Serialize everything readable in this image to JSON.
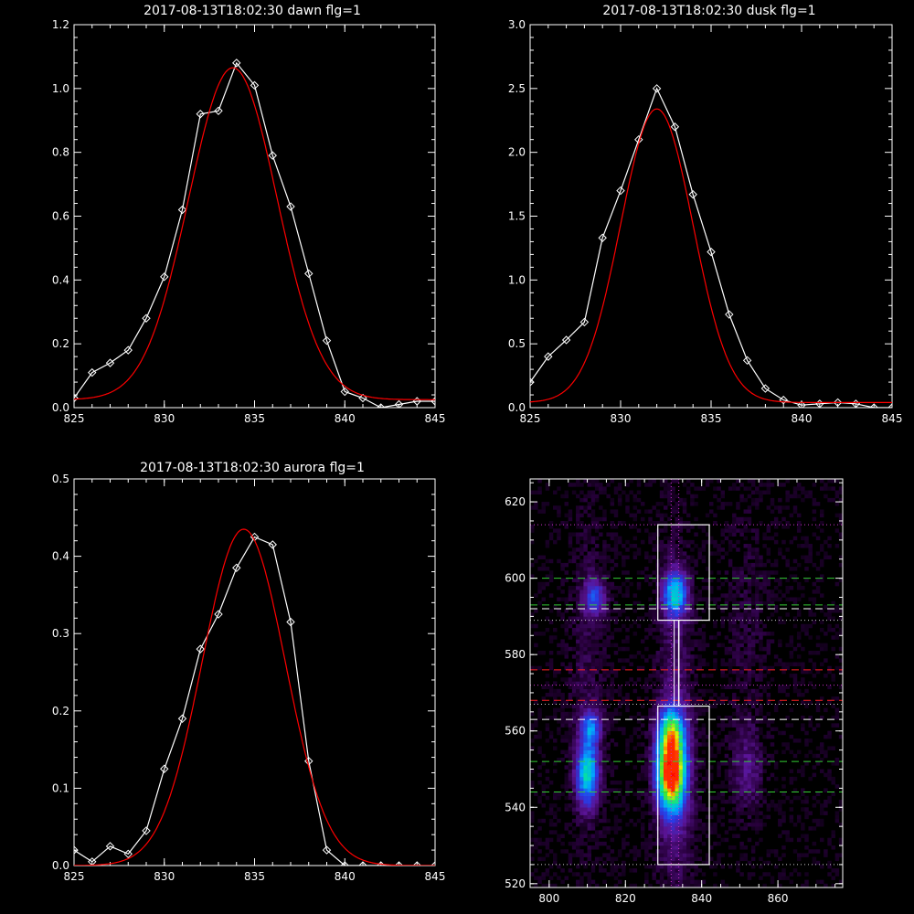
{
  "chart_data": [
    {
      "type": "line",
      "title": "2017-08-13T18:02:30 dawn flg=1",
      "xlim": [
        825,
        845
      ],
      "ylim": [
        0,
        1.2
      ],
      "xticks": [
        825,
        830,
        835,
        840,
        845
      ],
      "yticks": [
        "0.0",
        "0.2",
        "0.4",
        "0.6",
        "0.8",
        "1.0",
        "1.2"
      ],
      "x": [
        825,
        826,
        827,
        828,
        829,
        830,
        831,
        832,
        833,
        834,
        835,
        836,
        837,
        838,
        839,
        840,
        841,
        842,
        843,
        844,
        845
      ],
      "series": [
        {
          "color": "#ffffff",
          "markers": true,
          "values": [
            0.03,
            0.11,
            0.14,
            0.18,
            0.28,
            0.41,
            0.62,
            0.92,
            0.93,
            1.08,
            1.01,
            0.79,
            0.63,
            0.42,
            0.21,
            0.05,
            0.03,
            0.0,
            0.01,
            0.02,
            0.02
          ]
        },
        {
          "color": "#ff0000",
          "markers": false,
          "fit": {
            "amp": 1.04,
            "mu": 833.8,
            "sigma": 2.45,
            "base": 0.025
          }
        }
      ]
    },
    {
      "type": "line",
      "title": "2017-08-13T18:02:30 dusk flg=1",
      "xlim": [
        825,
        845
      ],
      "ylim": [
        0,
        3.0
      ],
      "xticks": [
        825,
        830,
        835,
        840,
        845
      ],
      "yticks": [
        "0.0",
        "0.5",
        "1.0",
        "1.5",
        "2.0",
        "2.5",
        "3.0"
      ],
      "x": [
        825,
        826,
        827,
        828,
        829,
        830,
        831,
        832,
        833,
        834,
        835,
        836,
        837,
        838,
        839,
        840,
        841,
        842,
        843,
        844,
        845
      ],
      "series": [
        {
          "color": "#ffffff",
          "markers": true,
          "values": [
            0.2,
            0.4,
            0.53,
            0.67,
            1.33,
            1.7,
            2.1,
            2.5,
            2.2,
            1.67,
            1.22,
            0.73,
            0.37,
            0.15,
            0.06,
            0.02,
            0.03,
            0.04,
            0.03,
            0.0,
            0.0
          ]
        },
        {
          "color": "#ff0000",
          "markers": false,
          "fit": {
            "amp": 2.3,
            "mu": 832.0,
            "sigma": 2.0,
            "base": 0.04
          }
        }
      ]
    },
    {
      "type": "line",
      "title": "2017-08-13T18:02:30 aurora flg=1",
      "xlim": [
        825,
        845
      ],
      "ylim": [
        0,
        0.5
      ],
      "xticks": [
        825,
        830,
        835,
        840,
        845
      ],
      "yticks": [
        "0.0",
        "0.1",
        "0.2",
        "0.3",
        "0.4",
        "0.5"
      ],
      "x": [
        825,
        826,
        827,
        828,
        829,
        830,
        831,
        832,
        833,
        834,
        835,
        836,
        837,
        838,
        839,
        840,
        841,
        842,
        843,
        844,
        845
      ],
      "series": [
        {
          "color": "#ffffff",
          "markers": true,
          "values": [
            0.02,
            0.005,
            0.025,
            0.015,
            0.045,
            0.125,
            0.19,
            0.28,
            0.325,
            0.385,
            0.425,
            0.415,
            0.315,
            0.135,
            0.02,
            0.0,
            0.0,
            0.0,
            0.0,
            0.0,
            0.0
          ]
        },
        {
          "color": "#ff0000",
          "markers": false,
          "fit": {
            "amp": 0.435,
            "mu": 834.4,
            "sigma": 2.3,
            "base": 0.0
          }
        }
      ]
    },
    {
      "type": "heatmap",
      "xlim": [
        795,
        877
      ],
      "ylim": [
        519,
        626
      ],
      "xticks": [
        800,
        820,
        840,
        860
      ],
      "yticks": [
        520,
        540,
        560,
        580,
        600,
        620
      ],
      "blobs": [
        {
          "x": 832,
          "y": 549,
          "sx": 2.5,
          "sy": 6.5,
          "amp": 1.0
        },
        {
          "x": 832,
          "y": 560,
          "sx": 2.5,
          "sy": 4.5,
          "amp": 0.45
        },
        {
          "x": 810,
          "y": 549,
          "sx": 2.0,
          "sy": 6.0,
          "amp": 0.55
        },
        {
          "x": 811,
          "y": 561,
          "sx": 1.8,
          "sy": 3.0,
          "amp": 0.35
        },
        {
          "x": 833,
          "y": 596,
          "sx": 2.3,
          "sy": 4.0,
          "amp": 0.5
        },
        {
          "x": 812,
          "y": 595,
          "sx": 2.0,
          "sy": 3.5,
          "amp": 0.3
        },
        {
          "x": 852,
          "y": 550,
          "sx": 3.0,
          "sy": 8.0,
          "amp": 0.15
        },
        {
          "x": 833,
          "y": 545,
          "sx": 3.5,
          "sy": 18.0,
          "amp": 0.18
        },
        {
          "x": 833,
          "y": 585,
          "sx": 3.0,
          "sy": 22.0,
          "amp": 0.1
        },
        {
          "x": 810,
          "y": 575,
          "sx": 3.5,
          "sy": 30.0,
          "amp": 0.08
        },
        {
          "x": 852,
          "y": 590,
          "sx": 4.0,
          "sy": 20.0,
          "amp": 0.06
        }
      ],
      "boxes": [
        [
          828.5,
          525,
          842,
          566.5
        ],
        [
          828.5,
          589,
          842,
          614
        ]
      ],
      "vlines_white": [
        834
      ],
      "hlines": [
        {
          "y": 600,
          "color": "#33cc33",
          "dash": "dashed"
        },
        {
          "y": 593,
          "color": "#33cc33",
          "dash": "dashed"
        },
        {
          "y": 592,
          "color": "#ffffff",
          "dash": "dashed"
        },
        {
          "y": 576,
          "color": "#ff2020",
          "dash": "dashed"
        },
        {
          "y": 568,
          "color": "#ff2020",
          "dash": "dashed"
        },
        {
          "y": 563,
          "color": "#ffffff",
          "dash": "dashed"
        },
        {
          "y": 552,
          "color": "#33cc33",
          "dash": "dashed"
        },
        {
          "y": 544,
          "color": "#33cc33",
          "dash": "dashed"
        },
        {
          "y": 614,
          "color": "#cc33cc",
          "dash": "dotted"
        },
        {
          "y": 589,
          "color": "#cccccc",
          "dash": "dotted"
        },
        {
          "y": 572,
          "color": "#cc33cc",
          "dash": "dotted"
        },
        {
          "y": 567,
          "color": "#cccccc",
          "dash": "dotted"
        },
        {
          "y": 525,
          "color": "#cccccc",
          "dash": "dotted"
        }
      ],
      "vlines_dotted": [
        {
          "x": 832,
          "color": "#cc33cc"
        },
        {
          "x": 834,
          "color": "#cc33cc"
        }
      ],
      "peak_markers": [
        {
          "x": 831,
          "y": 551
        },
        {
          "x": 832,
          "y": 548
        }
      ]
    }
  ]
}
